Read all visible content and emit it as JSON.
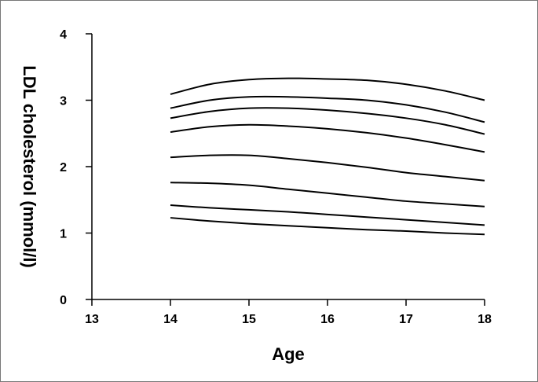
{
  "chart_data": {
    "type": "line",
    "xlabel": "Age",
    "ylabel": "LDL cholesterol (mmol/l)",
    "x": [
      14,
      14.5,
      15,
      15.5,
      16,
      16.5,
      17,
      17.5,
      18
    ],
    "xlim": [
      13,
      18
    ],
    "xticks": [
      13,
      14,
      15,
      16,
      17,
      18
    ],
    "ylim": [
      0,
      4
    ],
    "yticks": [
      0,
      1,
      2,
      3,
      4
    ],
    "grid": false,
    "series": [
      {
        "color": "#000000",
        "values": [
          3.09,
          3.24,
          3.31,
          3.33,
          3.32,
          3.3,
          3.24,
          3.14,
          3.0
        ]
      },
      {
        "color": "#000000",
        "values": [
          2.88,
          3.0,
          3.05,
          3.05,
          3.03,
          3.0,
          2.93,
          2.82,
          2.67
        ]
      },
      {
        "color": "#000000",
        "values": [
          2.73,
          2.83,
          2.88,
          2.88,
          2.85,
          2.8,
          2.73,
          2.63,
          2.49
        ]
      },
      {
        "color": "#000000",
        "values": [
          2.52,
          2.6,
          2.63,
          2.61,
          2.57,
          2.51,
          2.43,
          2.33,
          2.22
        ]
      },
      {
        "color": "#000000",
        "values": [
          2.14,
          2.17,
          2.17,
          2.12,
          2.06,
          1.99,
          1.91,
          1.85,
          1.79
        ]
      },
      {
        "color": "#000000",
        "values": [
          1.76,
          1.75,
          1.72,
          1.66,
          1.6,
          1.54,
          1.48,
          1.44,
          1.4
        ]
      },
      {
        "color": "#000000",
        "values": [
          1.42,
          1.38,
          1.35,
          1.32,
          1.28,
          1.24,
          1.2,
          1.16,
          1.12
        ]
      },
      {
        "color": "#000000",
        "values": [
          1.23,
          1.18,
          1.14,
          1.11,
          1.08,
          1.05,
          1.03,
          1.0,
          0.98
        ]
      }
    ]
  }
}
